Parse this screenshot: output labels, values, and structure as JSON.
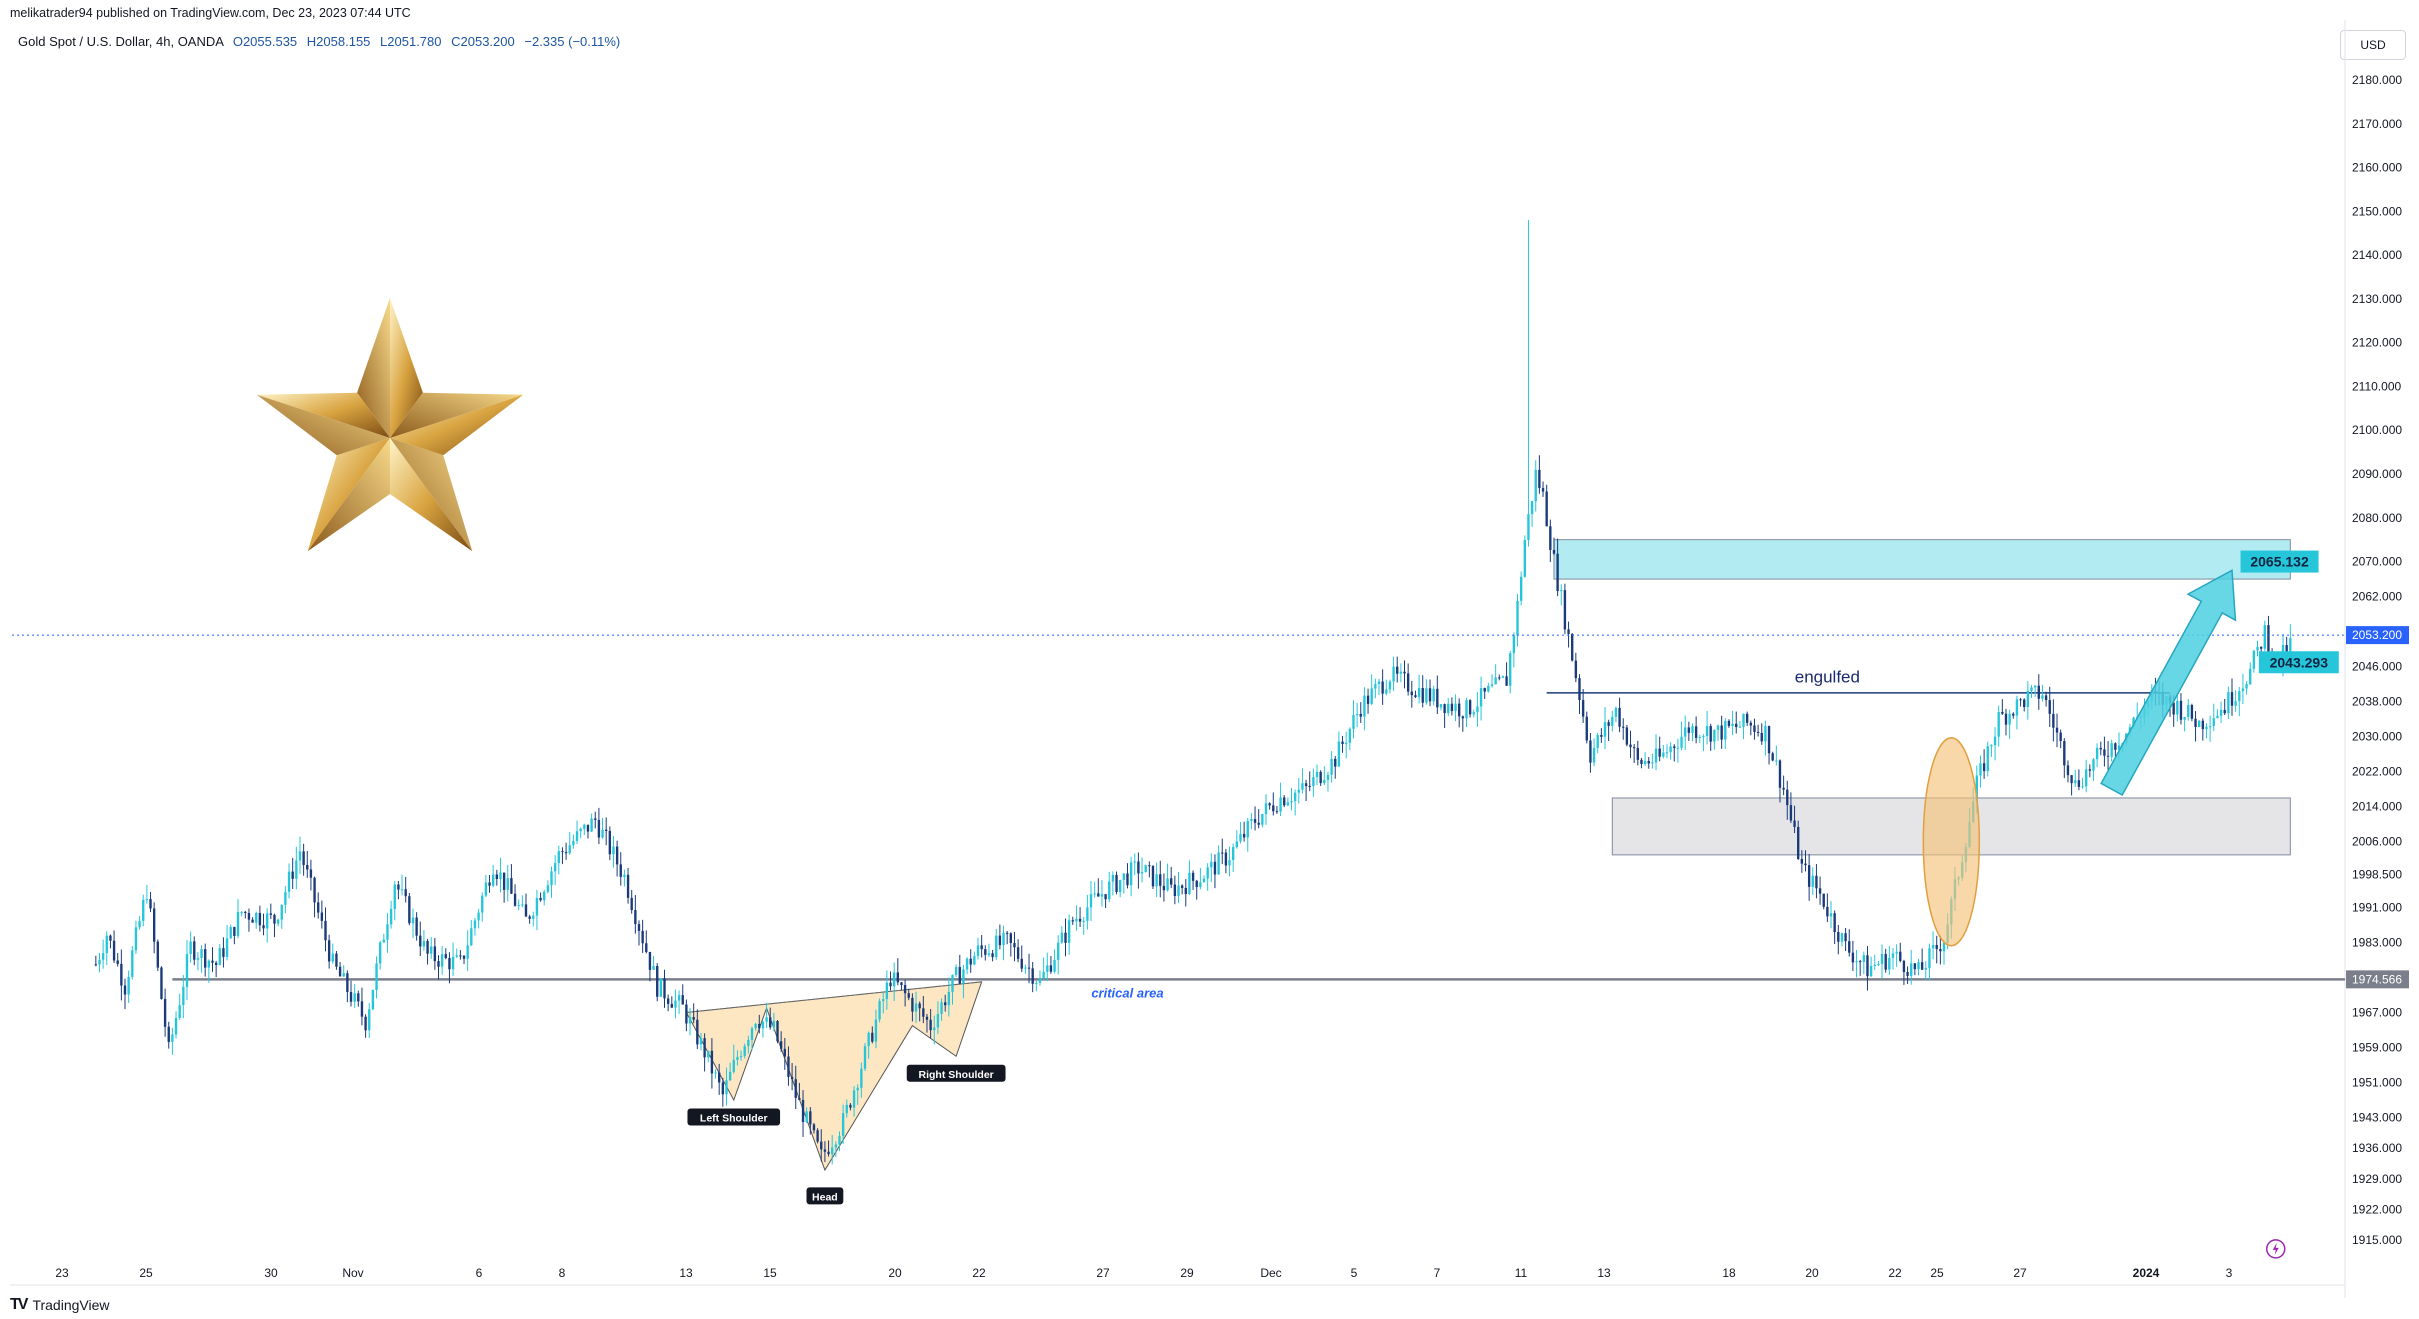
{
  "header": {
    "publisher": "melikatrader94 published on TradingView.com, Dec 23, 2023 07:44 UTC",
    "symbol": "Gold Spot / U.S. Dollar, 4h, OANDA",
    "open": "O2055.535",
    "high": "H2058.155",
    "low": "L2051.780",
    "close": "C2053.200",
    "change": "−2.335 (−0.11%)",
    "currency": "USD"
  },
  "footer": {
    "logo_text": "TradingView",
    "logo_mark": "TV"
  },
  "colors": {
    "up": "#26c6da",
    "down": "#1a3a7a",
    "accent": "#2962ff",
    "price_line": "#2962ff",
    "critical_line": "#7b7f8c",
    "supply_zone": "#b2ebf2",
    "demand_zone": "#e0e0e4",
    "hs_fill": "#fde7c3",
    "ellipse": "#f5c27a",
    "arrow": "#4dd0e1"
  },
  "chart_data": {
    "type": "candlestick",
    "title": "Gold Spot / U.S. Dollar, 4h, OANDA",
    "timeframe": "4h",
    "x_tick_labels": [
      "23",
      "25",
      "30",
      "Nov",
      "6",
      "8",
      "13",
      "15",
      "20",
      "22",
      "27",
      "29",
      "Dec",
      "5",
      "7",
      "11",
      "13",
      "18",
      "20",
      "22",
      "25",
      "27",
      "2024",
      "3"
    ],
    "y_tick_labels": [
      "2180.000",
      "2170.000",
      "2160.000",
      "2150.000",
      "2140.000",
      "2130.000",
      "2120.000",
      "2110.000",
      "2100.000",
      "2090.000",
      "2080.000",
      "2070.000",
      "2062.000",
      "2046.000",
      "2038.000",
      "2030.000",
      "2022.000",
      "2014.000",
      "2006.000",
      "1998.500",
      "1991.000",
      "1983.000",
      "1967.000",
      "1959.000",
      "1951.000",
      "1943.000",
      "1936.000",
      "1929.000",
      "1922.000",
      "1915.000"
    ],
    "ylim": [
      1910,
      2188
    ],
    "last_price": "2053.200",
    "critical_price": "1974.566",
    "price_path": [
      [
        23,
        1978
      ],
      [
        26,
        1985
      ],
      [
        31,
        1973
      ],
      [
        37,
        1995
      ],
      [
        43,
        1958
      ],
      [
        49,
        1982
      ],
      [
        56,
        1978
      ],
      [
        63,
        1990
      ],
      [
        72,
        1988
      ],
      [
        79,
        2004
      ],
      [
        88,
        1978
      ],
      [
        97,
        1965
      ],
      [
        105,
        1997
      ],
      [
        114,
        1980
      ],
      [
        123,
        1978
      ],
      [
        132,
        2001
      ],
      [
        141,
        1988
      ],
      [
        150,
        2003
      ],
      [
        160,
        2011
      ],
      [
        168,
        1998
      ],
      [
        177,
        1973
      ],
      [
        184,
        1968
      ],
      [
        190,
        1958
      ],
      [
        195,
        1948
      ],
      [
        199,
        1957
      ],
      [
        204,
        1966
      ],
      [
        209,
        1963
      ],
      [
        215,
        1948
      ],
      [
        222,
        1934
      ],
      [
        228,
        1942
      ],
      [
        235,
        1960
      ],
      [
        241,
        1975
      ],
      [
        246,
        1970
      ],
      [
        252,
        1964
      ],
      [
        259,
        1975
      ],
      [
        265,
        1981
      ],
      [
        273,
        1983
      ],
      [
        282,
        1974
      ],
      [
        291,
        1988
      ],
      [
        300,
        1995
      ],
      [
        309,
        2000
      ],
      [
        318,
        1995
      ],
      [
        326,
        1998
      ],
      [
        334,
        2003
      ],
      [
        341,
        2011
      ],
      [
        348,
        2016
      ],
      [
        355,
        2018
      ],
      [
        363,
        2025
      ],
      [
        370,
        2037
      ],
      [
        378,
        2044
      ],
      [
        385,
        2041
      ],
      [
        392,
        2038
      ],
      [
        399,
        2036
      ],
      [
        405,
        2040
      ],
      [
        410,
        2043
      ],
      [
        413,
        2060
      ],
      [
        415,
        2075
      ],
      [
        418,
        2090
      ],
      [
        420,
        2085
      ],
      [
        423,
        2070
      ],
      [
        429,
        2044
      ],
      [
        433,
        2026
      ],
      [
        440,
        2036
      ],
      [
        446,
        2024
      ],
      [
        452,
        2025
      ],
      [
        460,
        2032
      ],
      [
        468,
        2031
      ],
      [
        476,
        2033
      ],
      [
        481,
        2031
      ],
      [
        486,
        2018
      ],
      [
        491,
        2000
      ],
      [
        496,
        1994
      ],
      [
        503,
        1982
      ],
      [
        509,
        1977
      ],
      [
        516,
        1980
      ],
      [
        523,
        1976
      ],
      [
        530,
        1984
      ],
      [
        534,
        1999
      ],
      [
        539,
        2019
      ],
      [
        545,
        2034
      ],
      [
        553,
        2039
      ],
      [
        557,
        2040
      ],
      [
        562,
        2028
      ],
      [
        566,
        2019
      ],
      [
        573,
        2026
      ],
      [
        580,
        2031
      ],
      [
        587,
        2039
      ],
      [
        594,
        2037
      ],
      [
        600,
        2033
      ],
      [
        607,
        2037
      ],
      [
        614,
        2045
      ],
      [
        618,
        2054
      ],
      [
        621,
        2046
      ],
      [
        625,
        2051
      ]
    ],
    "annotations": [
      "2065.132",
      "2043.293",
      "engulfed",
      "critical area",
      "Left Shoulder",
      "Head",
      "Right Shoulder"
    ],
    "zones": [
      {
        "name": "supply-zone",
        "from": 2066,
        "to": 2075
      },
      {
        "name": "demand-zone",
        "from": 2003,
        "to": 2016
      }
    ]
  }
}
